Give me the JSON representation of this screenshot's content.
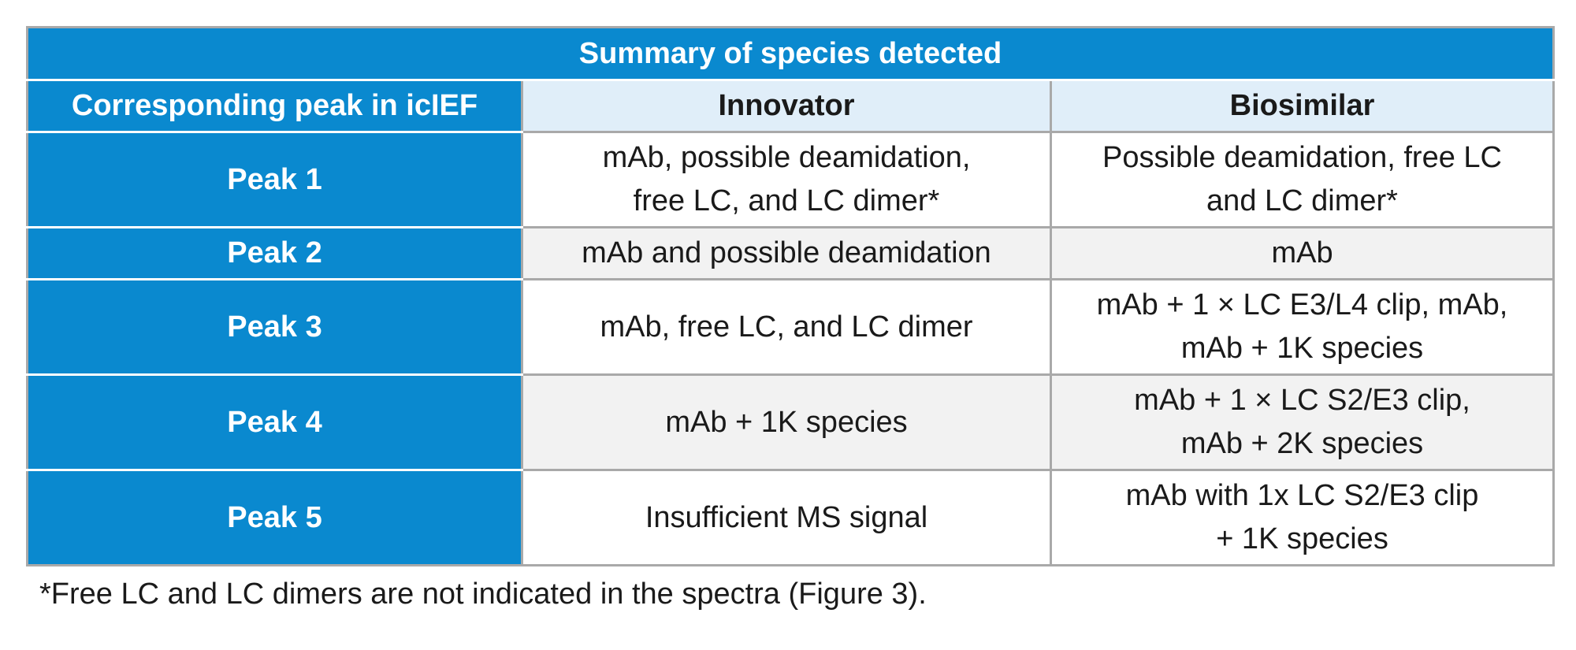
{
  "table": {
    "title": "Summary of species detected",
    "headers": [
      "Corresponding peak in icIEF",
      "Innovator",
      "Biosimilar"
    ],
    "rows": [
      {
        "peak": "Peak 1",
        "innovator": [
          "mAb, possible deamidation,",
          "free LC, and LC dimer*"
        ],
        "biosimilar": [
          "Possible deamidation, free LC",
          "and LC dimer*"
        ]
      },
      {
        "peak": "Peak 2",
        "innovator": [
          "mAb and possible deamidation"
        ],
        "biosimilar": [
          "mAb"
        ]
      },
      {
        "peak": "Peak 3",
        "innovator": [
          "mAb, free LC, and LC dimer"
        ],
        "biosimilar": [
          "mAb + 1 × LC E3/L4 clip, mAb,",
          "mAb + 1K species"
        ]
      },
      {
        "peak": "Peak 4",
        "innovator": [
          "mAb + 1K species"
        ],
        "biosimilar": [
          "mAb + 1 × LC S2/E3 clip,",
          "mAb + 2K species"
        ]
      },
      {
        "peak": "Peak 5",
        "innovator": [
          "Insufficient MS signal"
        ],
        "biosimilar": [
          "mAb with 1x LC S2/E3 clip",
          "+ 1K species"
        ]
      }
    ]
  },
  "footnote": "*Free LC and LC dimers are not indicated in the spectra (Figure 3).",
  "colors": {
    "header_blue": "#0a89cf",
    "column_header_bg": "#e0eef9",
    "alt_row_bg": "#f2f2f2",
    "border_gray": "#a9a9a9"
  }
}
